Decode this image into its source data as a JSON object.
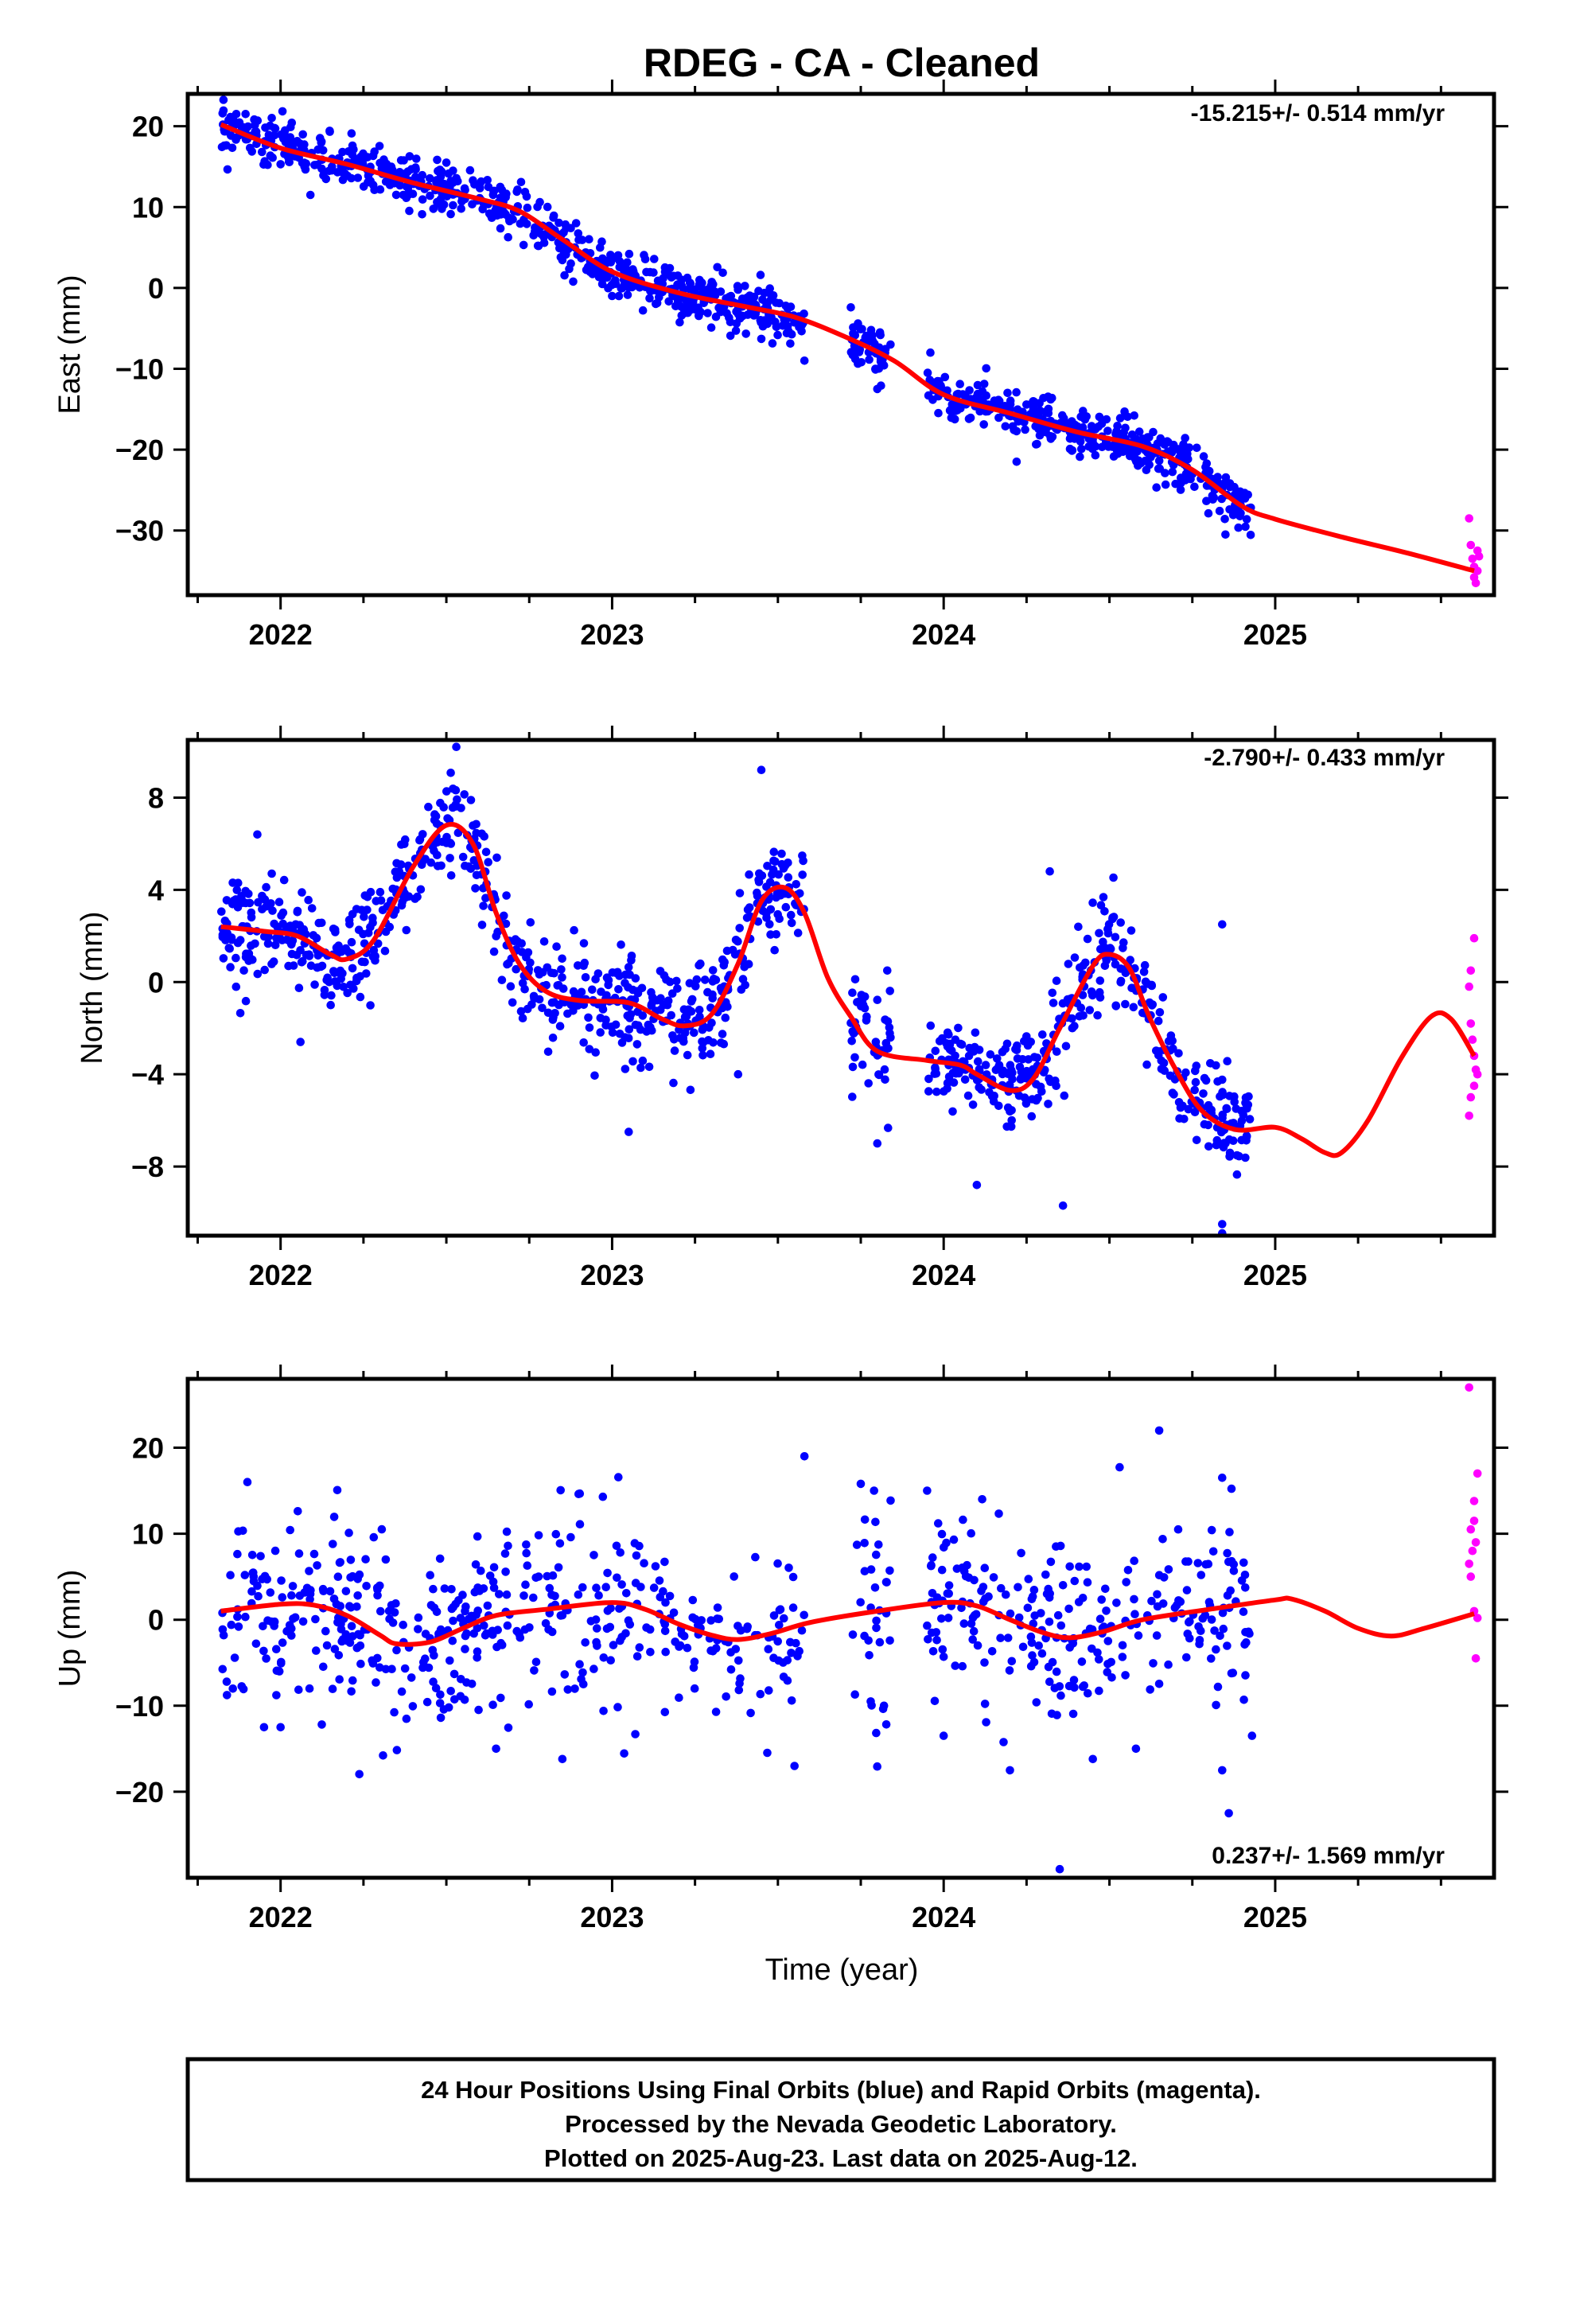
{
  "title": "RDEG  - CA - Cleaned",
  "colors": {
    "final": "#0000ff",
    "rapid": "#ff00ff",
    "model": "#ff0000",
    "frame": "#000000"
  },
  "xaxis": {
    "label": "Time (year)",
    "range": [
      2021.72,
      2025.66
    ],
    "ticks": [
      2022,
      2023,
      2024,
      2025
    ]
  },
  "chart_data": [
    {
      "type": "scatter",
      "component": "east",
      "ylabel": "East (mm)",
      "rate": "-15.215+/- 0.514 mm/yr",
      "ylim": [
        -38,
        24
      ],
      "yticks": [
        20,
        10,
        0,
        -10,
        -20,
        -30
      ],
      "model": [
        [
          2021.82,
          20.2
        ],
        [
          2022.0,
          17.3
        ],
        [
          2022.2,
          15.3
        ],
        [
          2022.4,
          13.0
        ],
        [
          2022.6,
          11.0
        ],
        [
          2022.72,
          9.5
        ],
        [
          2022.85,
          6.0
        ],
        [
          2023.0,
          2.0
        ],
        [
          2023.2,
          -0.6
        ],
        [
          2023.4,
          -2.3
        ],
        [
          2023.55,
          -3.6
        ],
        [
          2023.7,
          -6.0
        ],
        [
          2023.85,
          -9.0
        ],
        [
          2024.0,
          -13.2
        ],
        [
          2024.2,
          -15.5
        ],
        [
          2024.4,
          -17.8
        ],
        [
          2024.6,
          -19.6
        ],
        [
          2024.75,
          -22.5
        ],
        [
          2024.9,
          -27.0
        ],
        [
          2025.0,
          -28.6
        ],
        [
          2025.2,
          -30.8
        ],
        [
          2025.4,
          -32.8
        ],
        [
          2025.6,
          -35.0
        ]
      ],
      "segments": [
        {
          "start": 2021.82,
          "end": 2023.58,
          "density": 380,
          "scatter": 1.5,
          "outliers": [
            [
              2022.09,
              11.5
            ],
            [
              2022.5,
              15.5
            ],
            [
              2022.52,
              14.5
            ],
            [
              2023.0,
              -1.0
            ],
            [
              2023.45,
              -6.3
            ],
            [
              2023.58,
              -9.0
            ]
          ]
        },
        {
          "start": 2023.72,
          "end": 2023.84,
          "density": 380,
          "scatter": 1.6,
          "outliers": [
            [
              2023.72,
              -2.4
            ],
            [
              2023.8,
              -12.5
            ]
          ]
        },
        {
          "start": 2023.95,
          "end": 2024.93,
          "density": 380,
          "scatter": 1.5,
          "outliers": [
            [
              2023.96,
              -8.0
            ],
            [
              2024.22,
              -21.5
            ],
            [
              2024.85,
              -30.5
            ]
          ]
        }
      ],
      "rapid": [
        [
          2025.585,
          -28.5
        ],
        [
          2025.59,
          -31.8
        ],
        [
          2025.595,
          -33.5
        ],
        [
          2025.6,
          -34.5
        ],
        [
          2025.6,
          -35.8
        ],
        [
          2025.605,
          -36.5
        ],
        [
          2025.61,
          -32.5
        ],
        [
          2025.61,
          -35.0
        ],
        [
          2025.615,
          -33.2
        ]
      ]
    },
    {
      "type": "scatter",
      "component": "north",
      "ylabel": "North (mm)",
      "rate": "-2.790+/- 0.433 mm/yr",
      "ylim": [
        -11,
        10.5
      ],
      "yticks": [
        8,
        4,
        0,
        -4,
        -8
      ],
      "model": [
        [
          2021.82,
          2.4
        ],
        [
          2021.95,
          2.2
        ],
        [
          2022.05,
          2.0
        ],
        [
          2022.15,
          1.2
        ],
        [
          2022.2,
          1.0
        ],
        [
          2022.28,
          1.8
        ],
        [
          2022.4,
          5.0
        ],
        [
          2022.5,
          6.8
        ],
        [
          2022.58,
          6.0
        ],
        [
          2022.65,
          3.0
        ],
        [
          2022.72,
          0.8
        ],
        [
          2022.8,
          -0.4
        ],
        [
          2022.9,
          -0.8
        ],
        [
          2023.05,
          -0.9
        ],
        [
          2023.15,
          -1.6
        ],
        [
          2023.22,
          -1.9
        ],
        [
          2023.3,
          -1.4
        ],
        [
          2023.38,
          0.8
        ],
        [
          2023.45,
          3.5
        ],
        [
          2023.52,
          4.1
        ],
        [
          2023.58,
          3.0
        ],
        [
          2023.65,
          0.2
        ],
        [
          2023.72,
          -1.5
        ],
        [
          2023.8,
          -3.0
        ],
        [
          2023.95,
          -3.4
        ],
        [
          2024.05,
          -3.6
        ],
        [
          2024.1,
          -4.0
        ],
        [
          2024.2,
          -4.7
        ],
        [
          2024.27,
          -4.2
        ],
        [
          2024.35,
          -2.0
        ],
        [
          2024.45,
          0.7
        ],
        [
          2024.5,
          1.2
        ],
        [
          2024.56,
          0.6
        ],
        [
          2024.62,
          -1.5
        ],
        [
          2024.7,
          -3.8
        ],
        [
          2024.78,
          -5.6
        ],
        [
          2024.88,
          -6.4
        ],
        [
          2025.0,
          -6.3
        ],
        [
          2025.08,
          -6.8
        ],
        [
          2025.15,
          -7.4
        ],
        [
          2025.2,
          -7.4
        ],
        [
          2025.28,
          -6.0
        ],
        [
          2025.38,
          -3.3
        ],
        [
          2025.47,
          -1.5
        ],
        [
          2025.53,
          -1.6
        ],
        [
          2025.6,
          -3.2
        ]
      ],
      "segments": [
        {
          "start": 2021.82,
          "end": 2023.58,
          "density": 380,
          "scatter": 1.1,
          "outliers": [
            [
              2021.93,
              6.4
            ],
            [
              2022.06,
              -2.6
            ],
            [
              2022.53,
              10.2
            ],
            [
              2023.05,
              -6.5
            ],
            [
              2023.45,
              9.2
            ],
            [
              2023.38,
              -4.0
            ]
          ]
        },
        {
          "start": 2023.72,
          "end": 2023.84,
          "density": 380,
          "scatter": 1.4,
          "outliers": [
            [
              2023.8,
              -7.0
            ],
            [
              2023.83,
              0.5
            ]
          ]
        },
        {
          "start": 2023.95,
          "end": 2024.93,
          "density": 380,
          "scatter": 1.1,
          "outliers": [
            [
              2024.32,
              4.8
            ],
            [
              2024.36,
              -9.7
            ],
            [
              2024.1,
              -8.8
            ],
            [
              2024.84,
              2.5
            ],
            [
              2024.84,
              -10.5
            ],
            [
              2024.84,
              -10.9
            ]
          ]
        }
      ],
      "rapid": [
        [
          2025.6,
          1.9
        ],
        [
          2025.59,
          0.5
        ],
        [
          2025.585,
          -0.2
        ],
        [
          2025.59,
          -1.8
        ],
        [
          2025.595,
          -2.5
        ],
        [
          2025.6,
          -3.2
        ],
        [
          2025.605,
          -3.8
        ],
        [
          2025.6,
          -4.5
        ],
        [
          2025.59,
          -5.0
        ],
        [
          2025.585,
          -5.8
        ],
        [
          2025.61,
          -4.0
        ]
      ]
    },
    {
      "type": "scatter",
      "component": "up",
      "ylabel": "Up (mm)",
      "rate": "0.237+/- 1.569 mm/yr",
      "ylim": [
        -30,
        28
      ],
      "yticks": [
        20,
        10,
        0,
        -10,
        -20
      ],
      "model": [
        [
          2021.82,
          1.0
        ],
        [
          2022.0,
          1.8
        ],
        [
          2022.1,
          1.7
        ],
        [
          2022.2,
          0.5
        ],
        [
          2022.3,
          -1.8
        ],
        [
          2022.35,
          -2.8
        ],
        [
          2022.45,
          -2.6
        ],
        [
          2022.55,
          -1.0
        ],
        [
          2022.65,
          0.5
        ],
        [
          2022.8,
          1.2
        ],
        [
          2023.0,
          2.0
        ],
        [
          2023.1,
          1.2
        ],
        [
          2023.2,
          -0.5
        ],
        [
          2023.3,
          -1.8
        ],
        [
          2023.38,
          -2.3
        ],
        [
          2023.48,
          -1.6
        ],
        [
          2023.6,
          -0.3
        ],
        [
          2023.8,
          1.0
        ],
        [
          2024.0,
          2.0
        ],
        [
          2024.1,
          1.6
        ],
        [
          2024.2,
          0.0
        ],
        [
          2024.3,
          -1.5
        ],
        [
          2024.38,
          -2.1
        ],
        [
          2024.48,
          -1.4
        ],
        [
          2024.6,
          0.0
        ],
        [
          2024.8,
          1.2
        ],
        [
          2025.0,
          2.3
        ],
        [
          2025.05,
          2.4
        ],
        [
          2025.15,
          1.0
        ],
        [
          2025.25,
          -1.0
        ],
        [
          2025.35,
          -1.9
        ],
        [
          2025.45,
          -1.0
        ],
        [
          2025.6,
          0.7
        ]
      ],
      "segments": [
        {
          "start": 2021.82,
          "end": 2023.58,
          "density": 260,
          "scatter": 5.2,
          "outliers": [
            [
              2021.9,
              16.0
            ],
            [
              2021.95,
              -12.5
            ],
            [
              2022.0,
              -12.5
            ],
            [
              2022.65,
              -15.0
            ],
            [
              2022.85,
              -16.2
            ],
            [
              2023.55,
              -17.0
            ],
            [
              2023.58,
              19.0
            ],
            [
              2023.07,
              -13.3
            ]
          ]
        },
        {
          "start": 2023.72,
          "end": 2023.84,
          "density": 260,
          "scatter": 6.0,
          "outliers": [
            [
              2023.75,
              15.8
            ],
            [
              2023.79,
              15.0
            ],
            [
              2023.78,
              -9.5
            ],
            [
              2023.82,
              -10.0
            ]
          ]
        },
        {
          "start": 2023.95,
          "end": 2024.93,
          "density": 260,
          "scatter": 5.2,
          "outliers": [
            [
              2023.95,
              15.0
            ],
            [
              2024.0,
              -13.5
            ],
            [
              2024.2,
              -17.5
            ],
            [
              2024.35,
              -29.0
            ],
            [
              2024.45,
              -16.2
            ],
            [
              2024.58,
              -15.0
            ],
            [
              2024.65,
              22.0
            ],
            [
              2024.84,
              16.5
            ],
            [
              2024.84,
              -17.5
            ],
            [
              2024.86,
              -22.5
            ],
            [
              2024.93,
              -13.5
            ]
          ]
        }
      ],
      "rapid": [
        [
          2025.585,
          27.0
        ],
        [
          2025.61,
          17.0
        ],
        [
          2025.6,
          13.8
        ],
        [
          2025.6,
          11.5
        ],
        [
          2025.59,
          10.5
        ],
        [
          2025.605,
          9.0
        ],
        [
          2025.595,
          8.0
        ],
        [
          2025.585,
          6.5
        ],
        [
          2025.59,
          5.0
        ],
        [
          2025.6,
          1.0
        ],
        [
          2025.605,
          -4.5
        ],
        [
          2025.61,
          0.2
        ]
      ]
    }
  ],
  "footer": {
    "line1": "24 Hour Positions Using Final Orbits (blue) and Rapid Orbits (magenta).",
    "line2": "Processed by the Nevada Geodetic Laboratory.",
    "line3": "Plotted on 2025-Aug-23. Last data on 2025-Aug-12."
  }
}
